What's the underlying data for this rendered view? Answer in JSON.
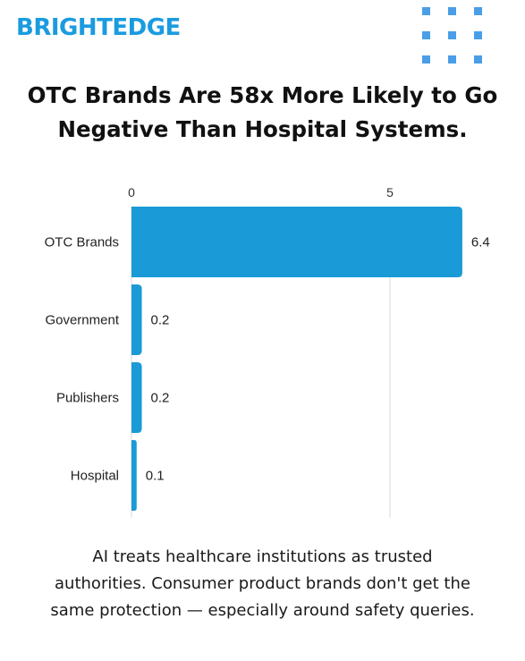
{
  "brand": {
    "logo_text": "BRIGHTEDGE",
    "logo_color": "#1a9be0",
    "dot_color": "#4a9ee8"
  },
  "title_lines": [
    "OTC Brands Are 58x More Likely to Go",
    "Negative Than Hospital Systems."
  ],
  "chart_data": {
    "type": "bar",
    "orientation": "horizontal",
    "categories": [
      "OTC Brands",
      "Government",
      "Publishers",
      "Hospital"
    ],
    "values": [
      6.4,
      0.2,
      0.2,
      0.1
    ],
    "value_labels": [
      "6.4",
      "0.2",
      "0.2",
      "0.1"
    ],
    "x_ticks": [
      "0",
      "5"
    ],
    "x_tick_values": [
      0,
      5
    ],
    "xlim": [
      0,
      6.4
    ],
    "axis_position": "top",
    "grid": true,
    "bar_color": "#1a9ad6"
  },
  "caption_lines": [
    "AI treats healthcare institutions as trusted",
    "authorities. Consumer product brands don't get the",
    "same protection — especially around safety queries."
  ]
}
